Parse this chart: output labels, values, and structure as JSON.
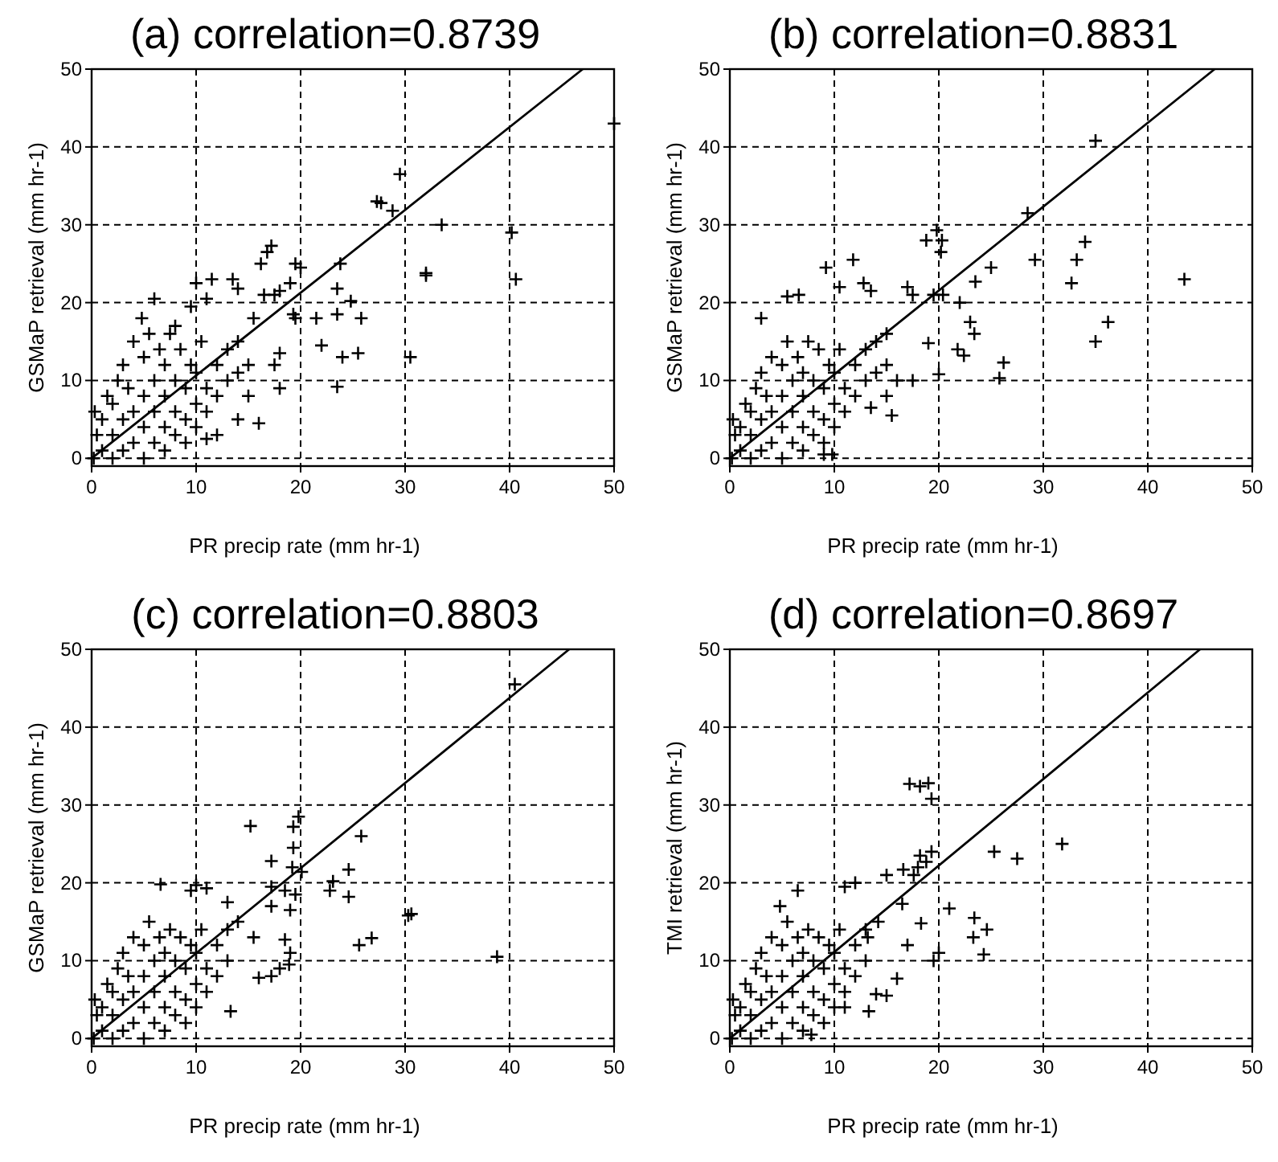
{
  "chart_data": [
    {
      "type": "scatter",
      "title": "(a)  correlation=0.8739",
      "xlabel": "PR precip rate (mm hr-1)",
      "ylabel": "GSMaP retrieval (mm hr-1)",
      "xlim": [
        0,
        50
      ],
      "ylim": [
        -1,
        50
      ],
      "xticks": [
        0,
        10,
        20,
        30,
        40,
        50
      ],
      "yticks": [
        0,
        10,
        20,
        30,
        40,
        50
      ],
      "grid": true,
      "series": [
        {
          "marker": "cross",
          "color": "#000000",
          "x": [
            0.2,
            0.5,
            0.3,
            1,
            1,
            1.5,
            2,
            2,
            2,
            2.5,
            3,
            3,
            3,
            3.5,
            4,
            4,
            4,
            5,
            5,
            5,
            5,
            5.5,
            6,
            6,
            6,
            6.5,
            7,
            7,
            7,
            7,
            7.5,
            8,
            8,
            8,
            8.5,
            9,
            9,
            9,
            9.5,
            10,
            10,
            10,
            10.5,
            11,
            11,
            12,
            12,
            13,
            13,
            14,
            14,
            15,
            15,
            50,
            29.5,
            27.3,
            27.7,
            28.8,
            33.5,
            40.2,
            40.6,
            32,
            32,
            30.5,
            23.5,
            24,
            25.5,
            25.8,
            24.8,
            23.5,
            23.5,
            23.8,
            21.5,
            22,
            19.5,
            19.3,
            17.2,
            16.8,
            16.2,
            19.5,
            20,
            19,
            18,
            16.5,
            17.5,
            13.5,
            11.5,
            10,
            15.5,
            18,
            17.5,
            18,
            16,
            14,
            12,
            11,
            6,
            4.8,
            8,
            9.5,
            11,
            14
          ],
          "values": [
            0,
            3,
            6,
            1,
            5,
            8,
            0,
            3,
            7,
            10,
            1,
            5,
            12,
            9,
            2,
            6,
            15,
            0,
            4,
            8,
            13,
            16,
            2,
            6,
            10,
            14,
            1,
            4,
            8,
            12,
            16,
            3,
            6,
            10,
            14,
            2,
            5,
            9,
            12,
            4,
            7,
            11,
            15,
            6,
            9,
            8,
            12,
            10,
            14,
            11,
            15,
            12,
            8,
            43,
            36.5,
            33,
            32.8,
            31.8,
            30,
            29,
            23,
            23.5,
            23.8,
            13,
            9.2,
            13,
            13.5,
            18,
            20.2,
            21.8,
            18.5,
            25,
            18,
            14.5,
            18,
            18.5,
            27.3,
            26.5,
            25,
            25,
            24.5,
            22.5,
            21.5,
            21,
            21,
            23,
            23,
            22.5,
            18,
            13.5,
            12,
            9,
            4.5,
            5,
            3,
            2.5,
            20.5,
            18,
            17,
            19.5,
            20.5,
            21.8
          ]
        },
        {
          "type": "line",
          "color": "#000000",
          "x": [
            0,
            47
          ],
          "values": [
            0,
            50
          ]
        }
      ]
    },
    {
      "type": "scatter",
      "title": "(b)   correlation=0.8831",
      "xlabel": "PR precip rate (mm hr-1)",
      "ylabel": "GSMaP retrieval (mm hr-1)",
      "xlim": [
        0,
        50
      ],
      "ylim": [
        -1,
        50
      ],
      "xticks": [
        0,
        10,
        20,
        30,
        40,
        50
      ],
      "yticks": [
        0,
        10,
        20,
        30,
        40,
        50
      ],
      "grid": true,
      "series": [
        {
          "marker": "cross",
          "color": "#000000",
          "x": [
            0.2,
            0.5,
            0.3,
            1,
            1,
            1.5,
            2,
            2,
            2,
            2.5,
            3,
            3,
            3,
            3.5,
            4,
            4,
            4,
            5,
            5,
            5,
            5,
            5.5,
            6,
            6,
            6,
            6.5,
            7,
            7,
            7,
            7,
            7.5,
            8,
            8,
            8,
            8.5,
            9,
            9,
            9,
            9.5,
            10,
            10,
            10,
            10.5,
            11,
            11,
            12,
            12,
            13,
            13,
            14,
            14,
            15,
            15,
            35,
            28.5,
            19.8,
            18.8,
            20.3,
            20.2,
            29.2,
            33.2,
            34,
            32.7,
            43.5,
            25,
            23.5,
            22,
            20.4,
            19.5,
            23,
            23.4,
            21.8,
            22.4,
            19,
            20,
            26.2,
            25.8,
            35,
            36.2,
            11.8,
            9.2,
            6.6,
            5.5,
            3,
            12.8,
            10.5,
            13.5,
            17,
            17.5,
            15,
            16,
            17.5,
            15.5,
            13.5,
            9,
            9.8
          ],
          "values": [
            0,
            3,
            5,
            1,
            4,
            7,
            0,
            3,
            6,
            9,
            1,
            5,
            11,
            8,
            2,
            6,
            13,
            0,
            4,
            8,
            12,
            15,
            2,
            6,
            10,
            13,
            1,
            4,
            8,
            11,
            15,
            3,
            6,
            10,
            14,
            2,
            5,
            9,
            12,
            4,
            7,
            11,
            14,
            6,
            9,
            8,
            12,
            10,
            14,
            11,
            15,
            12,
            8,
            40.8,
            31.5,
            29.3,
            28,
            28,
            26.5,
            25.5,
            25.5,
            27.8,
            22.5,
            23,
            24.5,
            22.7,
            20,
            21,
            21,
            17.5,
            16,
            14,
            13.2,
            14.8,
            10.8,
            12.3,
            10.3,
            15,
            17.5,
            25.5,
            24.5,
            21,
            20.8,
            18,
            22.5,
            22,
            21.5,
            22,
            21,
            16,
            10,
            10,
            5.5,
            6.5,
            0.5,
            0.5
          ]
        },
        {
          "type": "line",
          "color": "#000000",
          "x": [
            0,
            46.4
          ],
          "values": [
            0,
            50
          ]
        }
      ]
    },
    {
      "type": "scatter",
      "title": "(c)  correlation=0.8803",
      "xlabel": "PR precip rate (mm hr-1)",
      "ylabel": "GSMaP retrieval (mm hr-1)",
      "xlim": [
        0,
        50
      ],
      "ylim": [
        -1,
        50
      ],
      "xticks": [
        0,
        10,
        20,
        30,
        40,
        50
      ],
      "yticks": [
        0,
        10,
        20,
        30,
        40,
        50
      ],
      "grid": true,
      "series": [
        {
          "marker": "cross",
          "color": "#000000",
          "x": [
            0.2,
            0.5,
            0.3,
            1,
            1,
            1.5,
            2,
            2,
            2,
            2.5,
            3,
            3,
            3,
            3.5,
            4,
            4,
            4,
            5,
            5,
            5,
            5,
            5.5,
            6,
            6,
            6,
            6.5,
            7,
            7,
            7,
            7,
            7.5,
            8,
            8,
            8,
            8.5,
            9,
            9,
            9,
            9.5,
            10,
            10,
            10,
            10.5,
            11,
            11,
            12,
            12,
            13,
            13,
            40.5,
            19.8,
            19.3,
            15.2,
            19.3,
            25.8,
            17.2,
            19.2,
            20.1,
            23.1,
            24.6,
            22.8,
            24.6,
            17.2,
            18.5,
            17.2,
            19,
            19.5,
            30.3,
            30.6,
            25.6,
            26.8,
            38.8,
            18.5,
            19,
            18.9,
            16,
            17.2,
            18,
            13.3,
            6.6,
            10,
            11,
            9.5,
            13,
            15.5,
            14
          ],
          "values": [
            0,
            3,
            5,
            1,
            4,
            7,
            0,
            3,
            6,
            9,
            1,
            5,
            11,
            8,
            2,
            6,
            13,
            0,
            4,
            8,
            12,
            15,
            2,
            6,
            10,
            13,
            1,
            4,
            8,
            11,
            14,
            3,
            6,
            10,
            13,
            2,
            5,
            9,
            12,
            4,
            7,
            11,
            14,
            6,
            9,
            8,
            12,
            10,
            14,
            45.5,
            28.5,
            27.2,
            27.3,
            24.5,
            26,
            22.8,
            22,
            21.4,
            20.2,
            21.7,
            19,
            18.2,
            19.5,
            19,
            17,
            16.5,
            18.5,
            15.8,
            16,
            12,
            12.9,
            10.5,
            12.7,
            11,
            9.5,
            7.8,
            8,
            9,
            3.5,
            19.8,
            19.7,
            19.3,
            19,
            17.5,
            13,
            15
          ]
        },
        {
          "type": "line",
          "color": "#000000",
          "x": [
            0,
            45.7
          ],
          "values": [
            0,
            50
          ]
        }
      ]
    },
    {
      "type": "scatter",
      "title": "(d)   correlation=0.8697",
      "xlabel": "PR precip rate (mm hr-1)",
      "ylabel": "TMI retrieval (mm hr-1)",
      "xlim": [
        0,
        50
      ],
      "ylim": [
        -1,
        50
      ],
      "xticks": [
        0,
        10,
        20,
        30,
        40,
        50
      ],
      "yticks": [
        0,
        10,
        20,
        30,
        40,
        50
      ],
      "grid": true,
      "series": [
        {
          "marker": "cross",
          "color": "#000000",
          "x": [
            0.2,
            0.5,
            0.3,
            1,
            1,
            1.5,
            2,
            2,
            2,
            2.5,
            3,
            3,
            3,
            3.5,
            4,
            4,
            4,
            5,
            5,
            5,
            5,
            5.5,
            6,
            6,
            6,
            6.5,
            7,
            7,
            7,
            7,
            7.5,
            8,
            8,
            8,
            8.5,
            9,
            9,
            9,
            9.5,
            10,
            10,
            10,
            10.5,
            11,
            11,
            12,
            12,
            13,
            13,
            17.2,
            18.2,
            19,
            19.3,
            31.8,
            25.3,
            27.5,
            19.3,
            18.2,
            18.8,
            16.6,
            17.6,
            18,
            15,
            21,
            23.4,
            23.3,
            24.6,
            24.3,
            20,
            19.5,
            17,
            18.3,
            16.5,
            12,
            11,
            6.5,
            4.8,
            14.2,
            13.2,
            15,
            14,
            13.3,
            11,
            7.8,
            16
          ],
          "values": [
            0,
            3,
            5,
            1,
            4,
            7,
            0,
            3,
            6,
            9,
            1,
            5,
            11,
            8,
            2,
            6,
            13,
            0,
            4,
            8,
            12,
            15,
            2,
            6,
            10,
            13,
            1,
            4,
            8,
            11,
            14,
            3,
            6,
            10,
            13,
            2,
            5,
            9,
            12,
            4,
            7,
            11,
            14,
            6,
            9,
            8,
            12,
            10,
            14,
            32.7,
            32.4,
            32.8,
            30.8,
            25,
            24,
            23.1,
            24,
            23.5,
            22.7,
            21.7,
            21,
            22,
            21,
            16.7,
            15.5,
            13,
            14,
            10.8,
            11,
            10,
            12,
            14.8,
            17.3,
            20,
            19.5,
            19,
            17,
            15,
            13,
            5.5,
            5.7,
            3.5,
            4,
            0.5,
            7.7
          ]
        },
        {
          "type": "line",
          "color": "#000000",
          "x": [
            0,
            45
          ],
          "values": [
            0,
            50
          ]
        }
      ]
    }
  ]
}
